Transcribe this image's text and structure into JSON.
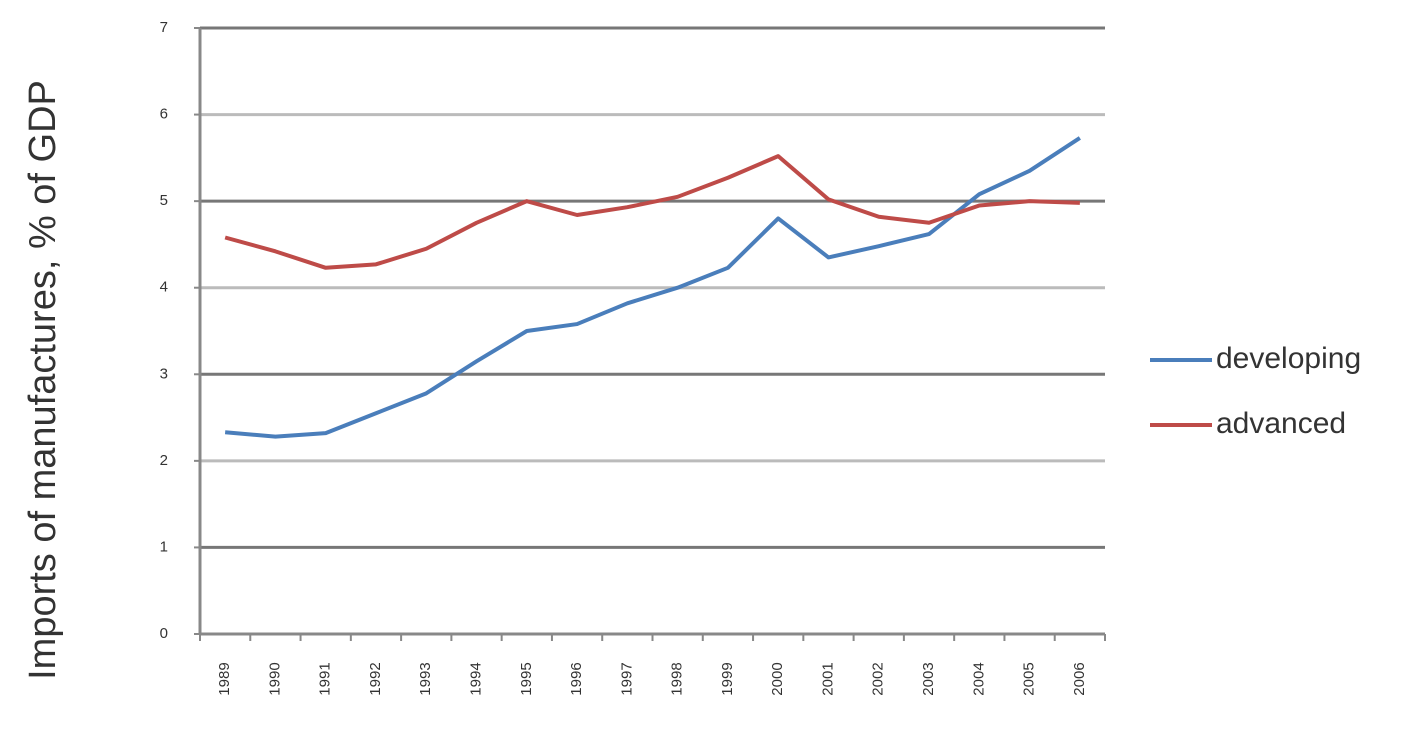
{
  "chart_data": {
    "type": "line",
    "y_label": "Imports of manufactures, % of GDP",
    "categories": [
      "1989",
      "1990",
      "1991",
      "1992",
      "1993",
      "1994",
      "1995",
      "1996",
      "1997",
      "1998",
      "1999",
      "2000",
      "2001",
      "2002",
      "2003",
      "2004",
      "2005",
      "2006"
    ],
    "series": [
      {
        "name": "developing",
        "color": "#4a7ebb",
        "values": [
          2.33,
          2.28,
          2.32,
          2.55,
          2.78,
          3.15,
          3.5,
          3.58,
          3.82,
          4.0,
          4.23,
          4.8,
          4.35,
          4.48,
          4.62,
          5.08,
          5.35,
          5.73
        ]
      },
      {
        "name": "advanced",
        "color": "#be4b48",
        "values": [
          4.58,
          4.42,
          4.23,
          4.27,
          4.45,
          4.75,
          5.0,
          4.84,
          4.93,
          5.05,
          5.27,
          5.52,
          5.02,
          4.82,
          4.75,
          4.95,
          5.0,
          4.98
        ]
      }
    ],
    "ylim": [
      0,
      7
    ],
    "yticks": [
      0,
      1,
      2,
      3,
      4,
      5,
      6,
      7
    ],
    "grid": true,
    "legend": "right"
  }
}
